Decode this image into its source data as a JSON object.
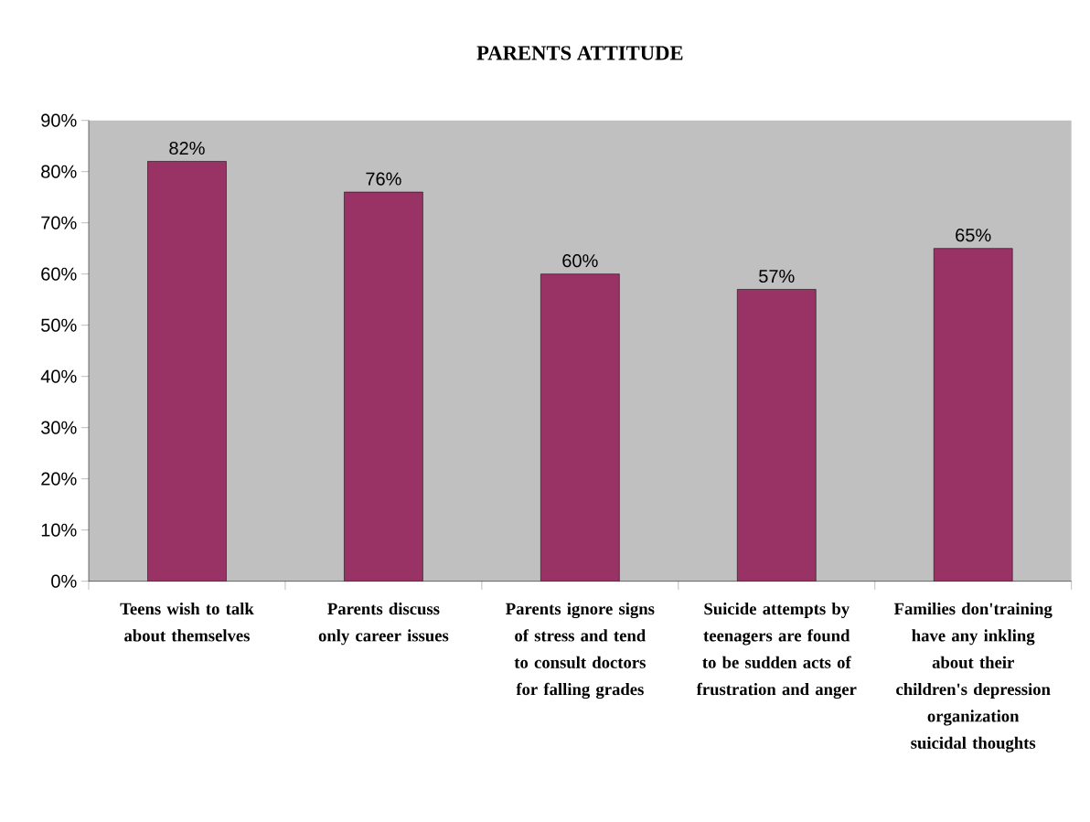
{
  "chart_data": {
    "type": "bar",
    "title": "PARENTS ATTITUDE",
    "categories": [
      "Teens wish to talk about themselves",
      "Parents discuss only career issues",
      "Parents ignore signs of stress and tend to consult doctors for falling grades",
      "Suicide attempts by teenagers are found to be sudden acts of frustration and anger",
      "Families don'training have any inkling about their children's depression organization suicidal thoughts"
    ],
    "values": [
      82,
      76,
      60,
      57,
      65
    ],
    "value_labels": [
      "82%",
      "76%",
      "60%",
      "57%",
      "65%"
    ],
    "color": "#993366",
    "ylim": [
      0,
      90
    ],
    "yticks": [
      {
        "value": 0,
        "label": "0%"
      },
      {
        "value": 10,
        "label": "10%"
      },
      {
        "value": 20,
        "label": "20%"
      },
      {
        "value": 30,
        "label": "30%"
      },
      {
        "value": 40,
        "label": "40%"
      },
      {
        "value": 50,
        "label": "50%"
      },
      {
        "value": 60,
        "label": "60%"
      },
      {
        "value": 70,
        "label": "70%"
      },
      {
        "value": 80,
        "label": "80%"
      },
      {
        "value": 90,
        "label": "90%"
      }
    ],
    "grid": false
  }
}
